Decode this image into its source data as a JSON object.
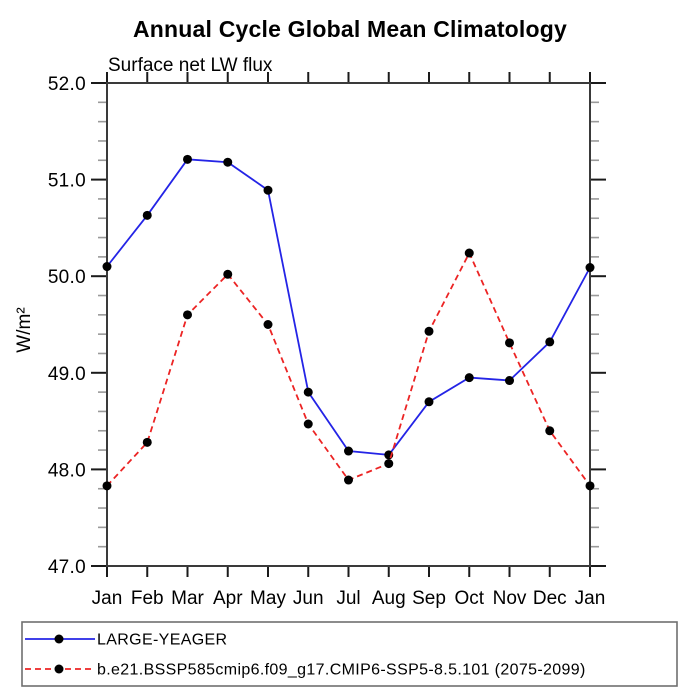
{
  "page": {
    "background": "#ffffff",
    "text_color": "#000000"
  },
  "chart_data": {
    "type": "line",
    "title": "Annual Cycle Global Mean Climatology",
    "subtitle": "Surface net LW flux",
    "ylabel": "W/m²",
    "xlabel": "",
    "x_tick_labels": [
      "Jan",
      "Feb",
      "Mar",
      "Apr",
      "May",
      "Jun",
      "Jul",
      "Aug",
      "Sep",
      "Oct",
      "Nov",
      "Dec",
      "Jan"
    ],
    "y_ticks": [
      47.0,
      48.0,
      49.0,
      50.0,
      51.0,
      52.0
    ],
    "y_tick_labels": [
      "47.0",
      "48.0",
      "49.0",
      "50.0",
      "51.0",
      "52.0"
    ],
    "ylim": [
      47.0,
      52.0
    ],
    "y_minor_step": 0.2,
    "grid": false,
    "legend_position": "bottom-left-outside",
    "marker": "filled-circle",
    "marker_color": "#000000",
    "series": [
      {
        "name": "LARGE-YEAGER",
        "color": "#2424e6",
        "line_style": "solid",
        "values": [
          50.1,
          50.63,
          51.21,
          51.18,
          50.89,
          48.8,
          48.19,
          48.15,
          48.7,
          48.95,
          48.92,
          49.32,
          50.09
        ]
      },
      {
        "name": "b.e21.BSSP585cmip6.f09_g17.CMIP6-SSP5-8.5.101 (2075-2099)",
        "color": "#ec2424",
        "line_style": "dashed",
        "values": [
          47.83,
          48.28,
          49.6,
          50.02,
          49.5,
          48.47,
          47.89,
          48.06,
          49.43,
          50.24,
          49.31,
          48.4,
          47.83
        ]
      }
    ]
  }
}
